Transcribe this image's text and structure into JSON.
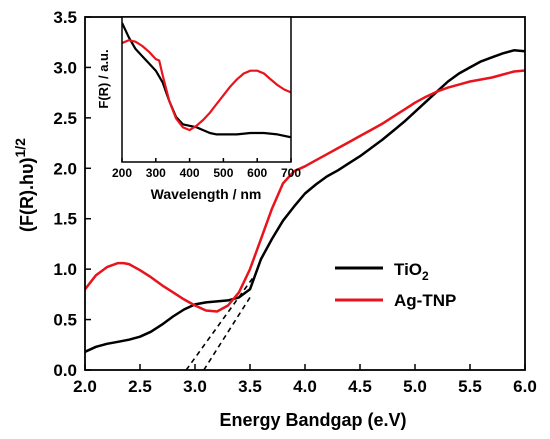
{
  "chart_data": [
    {
      "type": "line",
      "xlabel": "Energy Bandgap (e.V)",
      "ylabel": "(F(R).hυ)",
      "ylabel_superscript": "1/2",
      "xlim": [
        2.0,
        6.0
      ],
      "ylim": [
        0.0,
        3.5
      ],
      "xticks": [
        "2.0",
        "2.5",
        "3.0",
        "3.5",
        "4.0",
        "4.5",
        "5.0",
        "5.5",
        "6.0"
      ],
      "yticks": [
        "0.0",
        "0.5",
        "1.0",
        "1.5",
        "2.0",
        "2.5",
        "3.0",
        "3.5"
      ],
      "legend": {
        "placement": "center-right",
        "entries": [
          {
            "label_main": "TiO",
            "label_sub": "2",
            "color": "#000000"
          },
          {
            "label_main": "Ag-TNP",
            "label_sub": "",
            "color": "#e8141c"
          }
        ]
      },
      "series": [
        {
          "color": "#000000",
          "x": [
            2.0,
            2.1,
            2.2,
            2.3,
            2.4,
            2.5,
            2.6,
            2.7,
            2.8,
            2.9,
            3.0,
            3.1,
            3.2,
            3.3,
            3.4,
            3.5,
            3.55,
            3.6,
            3.7,
            3.8,
            3.9,
            4.0,
            4.1,
            4.2,
            4.3,
            4.4,
            4.5,
            4.6,
            4.7,
            4.8,
            4.9,
            5.0,
            5.1,
            5.2,
            5.3,
            5.4,
            5.5,
            5.6,
            5.7,
            5.8,
            5.9,
            6.0
          ],
          "y": [
            0.18,
            0.23,
            0.26,
            0.28,
            0.3,
            0.33,
            0.38,
            0.45,
            0.53,
            0.6,
            0.65,
            0.67,
            0.68,
            0.69,
            0.72,
            0.8,
            0.95,
            1.1,
            1.3,
            1.48,
            1.62,
            1.75,
            1.84,
            1.92,
            1.98,
            2.05,
            2.12,
            2.2,
            2.28,
            2.37,
            2.46,
            2.56,
            2.66,
            2.76,
            2.86,
            2.94,
            3.0,
            3.06,
            3.1,
            3.14,
            3.17,
            3.16
          ]
        },
        {
          "color": "#e8141c",
          "x": [
            2.0,
            2.1,
            2.2,
            2.3,
            2.35,
            2.4,
            2.5,
            2.6,
            2.7,
            2.8,
            2.9,
            3.0,
            3.1,
            3.2,
            3.3,
            3.4,
            3.5,
            3.6,
            3.7,
            3.8,
            3.9,
            4.0,
            4.1,
            4.2,
            4.3,
            4.4,
            4.5,
            4.6,
            4.7,
            4.8,
            4.9,
            5.0,
            5.1,
            5.2,
            5.3,
            5.4,
            5.5,
            5.6,
            5.7,
            5.8,
            5.9,
            6.0
          ],
          "y": [
            0.8,
            0.94,
            1.02,
            1.06,
            1.06,
            1.05,
            0.99,
            0.92,
            0.84,
            0.77,
            0.7,
            0.64,
            0.59,
            0.58,
            0.64,
            0.77,
            1.0,
            1.3,
            1.6,
            1.85,
            1.97,
            2.02,
            2.08,
            2.14,
            2.2,
            2.26,
            2.32,
            2.38,
            2.44,
            2.51,
            2.58,
            2.65,
            2.71,
            2.76,
            2.8,
            2.83,
            2.86,
            2.88,
            2.9,
            2.93,
            2.96,
            2.97
          ]
        },
        {
          "style": "dashed",
          "color": "#000000",
          "x": [
            2.92,
            3.55
          ],
          "y": [
            0.0,
            0.95
          ]
        },
        {
          "style": "dashed",
          "color": "#000000",
          "x": [
            3.08,
            3.5
          ],
          "y": [
            0.0,
            0.72
          ]
        }
      ]
    },
    {
      "type": "line",
      "inset": true,
      "xlabel": "Wavelength / nm",
      "ylabel": "F(R) / a.u.",
      "xlim": [
        200,
        700
      ],
      "ylim": [
        0,
        1
      ],
      "xticks": [
        "200",
        "300",
        "400",
        "500",
        "600",
        "700"
      ],
      "yticks": [],
      "series": [
        {
          "color": "#000000",
          "x": [
            200,
            220,
            240,
            260,
            280,
            300,
            320,
            340,
            360,
            380,
            400,
            420,
            440,
            460,
            480,
            500,
            540,
            580,
            620,
            660,
            700
          ],
          "y": [
            0.96,
            0.86,
            0.78,
            0.73,
            0.68,
            0.63,
            0.55,
            0.42,
            0.31,
            0.26,
            0.25,
            0.24,
            0.22,
            0.2,
            0.19,
            0.19,
            0.19,
            0.2,
            0.2,
            0.19,
            0.17
          ]
        },
        {
          "color": "#e8141c",
          "x": [
            200,
            220,
            240,
            260,
            280,
            300,
            310,
            320,
            340,
            360,
            380,
            400,
            420,
            440,
            460,
            480,
            500,
            520,
            540,
            560,
            580,
            600,
            620,
            640,
            660,
            680,
            700
          ],
          "y": [
            0.82,
            0.84,
            0.83,
            0.8,
            0.76,
            0.71,
            0.7,
            0.6,
            0.42,
            0.3,
            0.24,
            0.22,
            0.25,
            0.29,
            0.34,
            0.4,
            0.46,
            0.52,
            0.57,
            0.61,
            0.63,
            0.63,
            0.61,
            0.57,
            0.53,
            0.5,
            0.48
          ]
        }
      ]
    }
  ]
}
